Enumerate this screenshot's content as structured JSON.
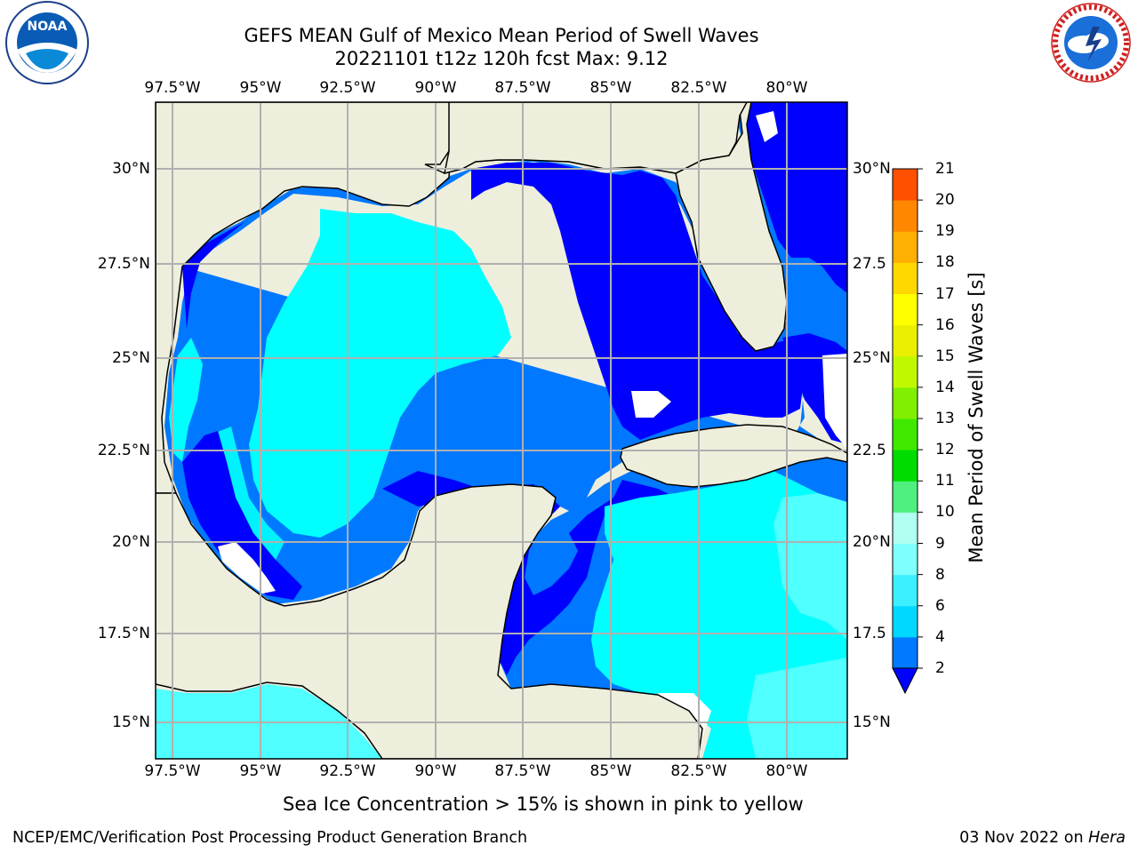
{
  "title_line1": "GEFS MEAN Gulf of Mexico Mean Period of Swell Waves",
  "title_line2": "20221101 t12z 120h fcst   Max: 9.12",
  "lon_ticks": [
    "97.5°W",
    "95°W",
    "92.5°W",
    "90°W",
    "87.5°W",
    "85°W",
    "82.5°W",
    "80°W"
  ],
  "lat_ticks_left": [
    "30°N",
    "27.5°N",
    "25°N",
    "22.5°N",
    "20°N",
    "17.5°N",
    "15°N"
  ],
  "lat_ticks_right": [
    "30°N",
    "27.5",
    "25°N",
    "22.5",
    "20°N",
    "17.5",
    "15°N"
  ],
  "colorbar": {
    "label": "Mean Period of Swell Waves [s]",
    "ticks": [
      "2",
      "4",
      "6",
      "8",
      "9",
      "10",
      "11",
      "12",
      "13",
      "14",
      "15",
      "16",
      "17",
      "18",
      "19",
      "20",
      "21"
    ],
    "colors": [
      "#0078ff",
      "#00d8ff",
      "#3cf0ff",
      "#80ffff",
      "#b0fff0",
      "#50f080",
      "#00dc00",
      "#40e800",
      "#80f000",
      "#c0f800",
      "#e8f000",
      "#ffff00",
      "#ffd800",
      "#ffb000",
      "#ff8800",
      "#ff5000",
      "#ff2800"
    ],
    "extend_color": "#0000ff"
  },
  "note": "Sea Ice Concentration > 15% is shown in pink to yellow",
  "footer_left": "NCEP/EMC/Verification Post Processing Product Generation Branch",
  "footer_date": "03 Nov 2022 on",
  "footer_machine": "Hera",
  "logos": {
    "noaa_text": "NOAA",
    "nws_text": "NATIONAL WEATHER SERVICE"
  },
  "map_colors": {
    "land": "#eeeedd",
    "ocean_dark": "#0000ff",
    "ocean_mid": "#0078ff",
    "ocean_light": "#00ffff",
    "ocean_pale": "#50ffff",
    "grid": "#b0b0b0"
  }
}
